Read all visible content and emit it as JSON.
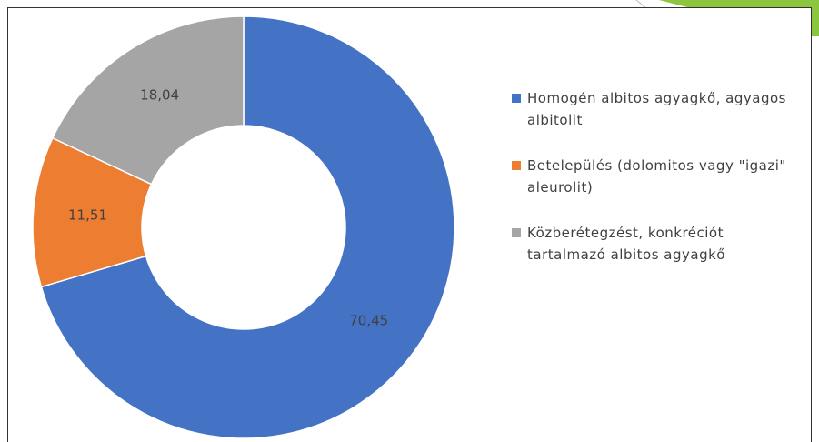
{
  "chart_data": {
    "type": "donut",
    "categories": [
      "Homogén albitos agyagkő, agyagos albitolit",
      "Betelepülés (dolomitos vagy \"igazi\" aleurolit)",
      "Közberétegzést, konkréciót tartalmazó albitos agyagkő"
    ],
    "values": [
      70.45,
      11.51,
      18.04
    ],
    "value_labels": [
      "70,45",
      "11,51",
      "18,04"
    ],
    "colors": [
      "#4472c4",
      "#ed7d31",
      "#a5a5a5"
    ],
    "legend": "right"
  }
}
